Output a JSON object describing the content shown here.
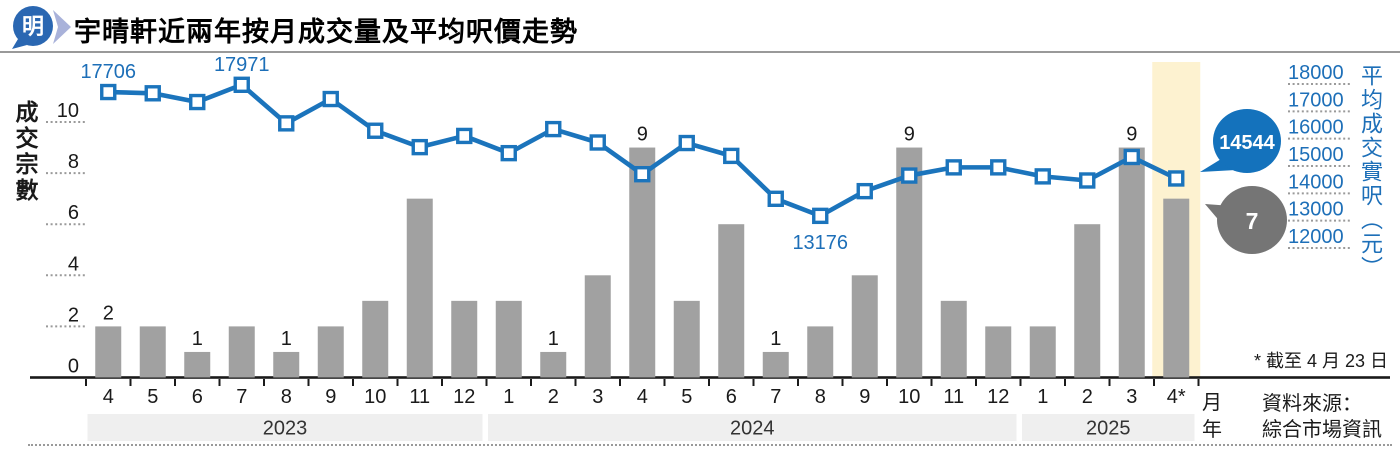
{
  "header": {
    "logo_text": "明",
    "title": "宇晴軒近兩年按月成交量及平均呎價走勢"
  },
  "footnote": "* 截至 4 月 23 日",
  "source": {
    "line1": "資料來源：",
    "line2": "綜合市場資訊"
  },
  "axis_units": {
    "month": "月",
    "year": "年"
  },
  "colors": {
    "line_blue": "#1b74bc",
    "bar_gray": "#a1a1a1",
    "bubble_blue": "#1472bc",
    "bubble_gray": "#757575",
    "highlight_yellow": "#fdf2d0",
    "year_band_gray": "#efefef",
    "axis_text_blue": "#1d6fb8",
    "logo_blue": "#2a67b2",
    "logo_swoosh": "#a9b2da"
  },
  "chart_data": {
    "type": "bar",
    "title": "宇晴軒近兩年按月成交量及平均呎價走勢",
    "categories": [
      "4",
      "5",
      "6",
      "7",
      "8",
      "9",
      "10",
      "11",
      "12",
      "1",
      "2",
      "3",
      "4",
      "5",
      "6",
      "7",
      "8",
      "9",
      "10",
      "11",
      "12",
      "1",
      "2",
      "3",
      "4*"
    ],
    "year_groups": [
      {
        "label": "2023",
        "from": 0,
        "to": 8
      },
      {
        "label": "2024",
        "from": 9,
        "to": 20
      },
      {
        "label": "2025",
        "from": 21,
        "to": 24
      }
    ],
    "series": [
      {
        "name": "成交宗數",
        "type": "bar",
        "axis": "left",
        "values": [
          2,
          2,
          1,
          2,
          1,
          2,
          3,
          7,
          3,
          3,
          1,
          4,
          9,
          3,
          6,
          1,
          2,
          4,
          9,
          3,
          2,
          2,
          6,
          9,
          7
        ]
      },
      {
        "name": "平均成交實呎（元）",
        "type": "line",
        "axis": "right",
        "values": [
          17706,
          17660,
          17340,
          17971,
          16560,
          17450,
          16290,
          15690,
          16100,
          15470,
          16350,
          15860,
          14700,
          15840,
          15370,
          13800,
          13176,
          14080,
          14650,
          14950,
          14950,
          14620,
          14470,
          15330,
          14544
        ]
      }
    ],
    "bar_value_labels": [
      {
        "index": 0,
        "text": "2"
      },
      {
        "index": 2,
        "text": "1"
      },
      {
        "index": 4,
        "text": "1"
      },
      {
        "index": 10,
        "text": "1"
      },
      {
        "index": 12,
        "text": "9"
      },
      {
        "index": 15,
        "text": "1"
      },
      {
        "index": 18,
        "text": "9"
      },
      {
        "index": 23,
        "text": "9"
      }
    ],
    "line_point_labels": [
      {
        "index": 0,
        "text": "17706",
        "placement": "above"
      },
      {
        "index": 3,
        "text": "17971",
        "placement": "above"
      },
      {
        "index": 16,
        "text": "13176",
        "placement": "below"
      }
    ],
    "left_axis": {
      "label": "成交宗數",
      "ticks": [
        "0",
        "2",
        "4",
        "6",
        "8",
        "10"
      ],
      "range": [
        0,
        10
      ]
    },
    "right_axis": {
      "label": "平均成交實呎（元）",
      "ticks": [
        "12000",
        "13000",
        "14000",
        "15000",
        "16000",
        "17000",
        "18000"
      ],
      "range": [
        12000,
        18000
      ]
    },
    "highlight_index": 24,
    "callouts": [
      {
        "text": "14544",
        "refers_to": "line-latest"
      },
      {
        "text": "7",
        "refers_to": "bar-latest"
      }
    ]
  }
}
